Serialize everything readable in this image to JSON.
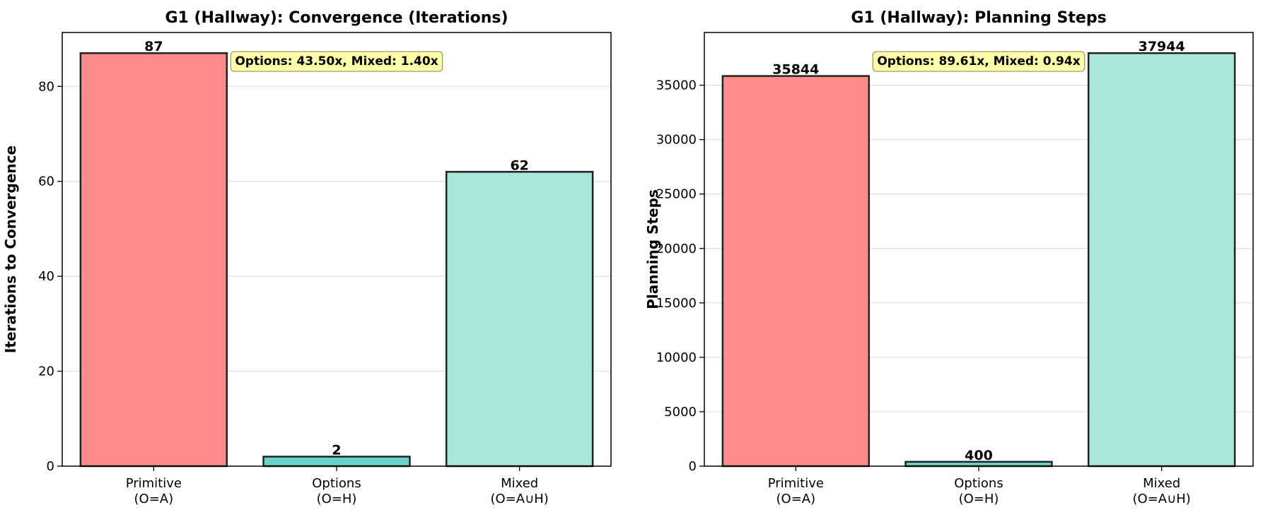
{
  "chart_data": [
    {
      "type": "bar",
      "title": "G1 (Hallway): Convergence (Iterations)",
      "xlabel": "",
      "ylabel": "Iterations to Convergence",
      "categories": [
        [
          "Primitive",
          "(O=A)"
        ],
        [
          "Options",
          "(O=H)"
        ],
        [
          "Mixed",
          "(O=A∪H)"
        ]
      ],
      "values": [
        87,
        2,
        62
      ],
      "value_labels": [
        "87",
        "2",
        "62"
      ],
      "colors": [
        "#ff8a8a",
        "#69d3cb",
        "#aae6db"
      ],
      "ylim": [
        0,
        91.35
      ],
      "yticks": [
        0,
        20,
        40,
        60,
        80
      ],
      "ytick_labels": [
        "0",
        "20",
        "40",
        "60",
        "80"
      ],
      "grid": "y",
      "annotation": "Options: 43.50x, Mixed: 1.40x"
    },
    {
      "type": "bar",
      "title": "G1 (Hallway): Planning Steps",
      "xlabel": "",
      "ylabel": "Planning Steps",
      "categories": [
        [
          "Primitive",
          "(O=A)"
        ],
        [
          "Options",
          "(O=H)"
        ],
        [
          "Mixed",
          "(O=A∪H)"
        ]
      ],
      "values": [
        35844,
        400,
        37944
      ],
      "value_labels": [
        "35844",
        "400",
        "37944"
      ],
      "colors": [
        "#ff8a8a",
        "#69d3cb",
        "#aae6db"
      ],
      "ylim": [
        0,
        39841
      ],
      "yticks": [
        0,
        5000,
        10000,
        15000,
        20000,
        25000,
        30000,
        35000
      ],
      "ytick_labels": [
        "0",
        "5000",
        "10000",
        "15000",
        "20000",
        "25000",
        "30000",
        "35000"
      ],
      "grid": "y",
      "annotation": "Options: 89.61x, Mixed: 0.94x"
    }
  ]
}
